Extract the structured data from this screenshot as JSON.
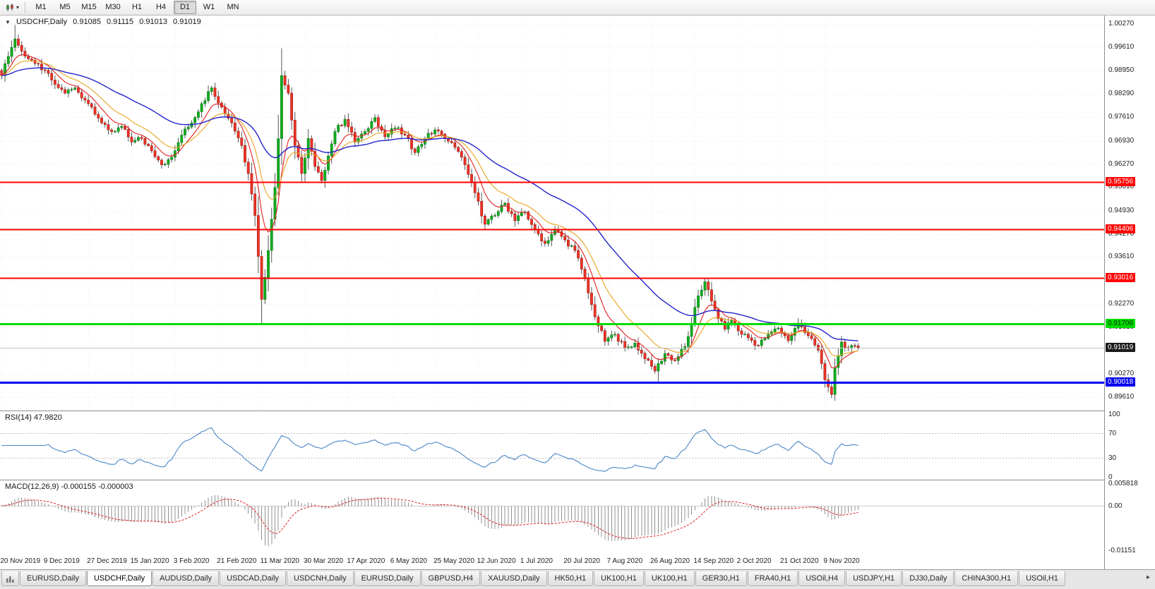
{
  "icons": {
    "collapse_triangle": "▼",
    "dropdown_caret": "▾",
    "scroll_right_arrow": "▸"
  },
  "toolbar": {
    "timeframes": [
      "M1",
      "M5",
      "M15",
      "M30",
      "H1",
      "H4",
      "D1",
      "W1",
      "MN"
    ],
    "active": "D1"
  },
  "panels": {
    "main_title_symbol": "USDCHF,Daily",
    "rsi_title": "RSI(14) 47.9820",
    "macd_title": "MACD(12,26,9) -0.000155 -0.000003"
  },
  "chart_data": {
    "type": "candlestick",
    "symbol": "USDCHF",
    "timeframe": "Daily",
    "quote": {
      "open": "0.91085",
      "high": "0.91115",
      "low": "0.91013",
      "close": "0.91019"
    },
    "x_axis": {
      "bars_total": 258,
      "bars_per_tick": 13,
      "tick_labels": [
        "20 Nov 2019",
        "9 Dec 2019",
        "27 Dec 2019",
        "15 Jan 2020",
        "3 Feb 2020",
        "21 Feb 2020",
        "11 Mar 2020",
        "30 Mar 2020",
        "17 Apr 2020",
        "6 May 2020",
        "25 May 2020",
        "12 Jun 2020",
        "1 Jul 2020",
        "20 Jul 2020",
        "7 Aug 2020",
        "26 Aug 2020",
        "14 Sep 2020",
        "2 Oct 2020",
        "21 Oct 2020",
        "9 Nov 2020"
      ]
    },
    "y_axis": {
      "top_price": 1.0052,
      "bottom_price": 0.8922,
      "tick_labels": [
        "1.00270",
        "0.99610",
        "0.98950",
        "0.98290",
        "0.97610",
        "0.96930",
        "0.96270",
        "0.95610",
        "0.94930",
        "0.94270",
        "0.93610",
        "0.92930",
        "0.92270",
        "0.91610",
        "0.90930",
        "0.90270",
        "0.89610"
      ]
    },
    "price_path_waypoints": [
      [
        0,
        0.988
      ],
      [
        2,
        0.9935
      ],
      [
        4,
        0.9985
      ],
      [
        6,
        0.995
      ],
      [
        10,
        0.9915
      ],
      [
        13,
        0.9895
      ],
      [
        16,
        0.9855
      ],
      [
        19,
        0.983
      ],
      [
        22,
        0.9845
      ],
      [
        25,
        0.981
      ],
      [
        27,
        0.979
      ],
      [
        30,
        0.9745
      ],
      [
        33,
        0.972
      ],
      [
        36,
        0.9735
      ],
      [
        39,
        0.969
      ],
      [
        42,
        0.97
      ],
      [
        45,
        0.9665
      ],
      [
        48,
        0.9625
      ],
      [
        50,
        0.964
      ],
      [
        52,
        0.9665
      ],
      [
        54,
        0.971
      ],
      [
        57,
        0.9745
      ],
      [
        60,
        0.98
      ],
      [
        63,
        0.9845
      ],
      [
        66,
        0.979
      ],
      [
        69,
        0.9745
      ],
      [
        72,
        0.968
      ],
      [
        74,
        0.96
      ],
      [
        76,
        0.948
      ],
      [
        78,
        0.924
      ],
      [
        80,
        0.938
      ],
      [
        82,
        0.956
      ],
      [
        83,
        0.97
      ],
      [
        84,
        0.988
      ],
      [
        86,
        0.983
      ],
      [
        88,
        0.968
      ],
      [
        90,
        0.96
      ],
      [
        92,
        0.97
      ],
      [
        94,
        0.962
      ],
      [
        96,
        0.958
      ],
      [
        98,
        0.965
      ],
      [
        100,
        0.972
      ],
      [
        103,
        0.9755
      ],
      [
        106,
        0.969
      ],
      [
        109,
        0.972
      ],
      [
        112,
        0.976
      ],
      [
        115,
        0.9705
      ],
      [
        118,
        0.973
      ],
      [
        121,
        0.971
      ],
      [
        124,
        0.966
      ],
      [
        127,
        0.97
      ],
      [
        130,
        0.9725
      ],
      [
        133,
        0.97
      ],
      [
        136,
        0.9675
      ],
      [
        139,
        0.9625
      ],
      [
        142,
        0.9545
      ],
      [
        145,
        0.9455
      ],
      [
        148,
        0.948
      ],
      [
        151,
        0.9515
      ],
      [
        154,
        0.9465
      ],
      [
        157,
        0.949
      ],
      [
        160,
        0.944
      ],
      [
        163,
        0.94
      ],
      [
        166,
        0.944
      ],
      [
        169,
        0.941
      ],
      [
        172,
        0.938
      ],
      [
        175,
        0.93
      ],
      [
        178,
        0.919
      ],
      [
        181,
        0.912
      ],
      [
        184,
        0.914
      ],
      [
        187,
        0.91
      ],
      [
        190,
        0.9115
      ],
      [
        193,
        0.907
      ],
      [
        196,
        0.9035
      ],
      [
        199,
        0.9085
      ],
      [
        202,
        0.9065
      ],
      [
        205,
        0.9105
      ],
      [
        207,
        0.917
      ],
      [
        209,
        0.925
      ],
      [
        211,
        0.929
      ],
      [
        213,
        0.9235
      ],
      [
        215,
        0.9185
      ],
      [
        217,
        0.9155
      ],
      [
        219,
        0.918
      ],
      [
        221,
        0.915
      ],
      [
        224,
        0.913
      ],
      [
        227,
        0.9108
      ],
      [
        230,
        0.914
      ],
      [
        233,
        0.9158
      ],
      [
        236,
        0.9122
      ],
      [
        239,
        0.9172
      ],
      [
        241,
        0.9145
      ],
      [
        243,
        0.9128
      ],
      [
        245,
        0.9095
      ],
      [
        247,
        0.901
      ],
      [
        249,
        0.8968
      ],
      [
        250,
        0.9045
      ],
      [
        252,
        0.9118
      ],
      [
        254,
        0.91
      ],
      [
        257,
        0.9102
      ]
    ],
    "extreme_spikes": [
      {
        "bar": 4,
        "high": 1.0025
      },
      {
        "bar": 62,
        "high": 0.9852
      },
      {
        "bar": 78,
        "low": 0.9172
      },
      {
        "bar": 84,
        "high": 0.9901
      },
      {
        "bar": 197,
        "low": 0.9003
      },
      {
        "bar": 211,
        "high": 0.9296
      },
      {
        "bar": 249,
        "low": 0.8961
      }
    ],
    "moving_averages": [
      {
        "name": "fast-ma-red",
        "color": "#e01f1f",
        "period": 8
      },
      {
        "name": "medium-ma-gold",
        "color": "#e8a51e",
        "period": 16
      },
      {
        "name": "slow-ma-blue",
        "color": "#2323cc",
        "period": 45
      }
    ],
    "horizontal_lines": [
      {
        "value": 0.95756,
        "label": "0.95756",
        "color": "#ff0000",
        "text_color": "#ffffff",
        "thickness": 2
      },
      {
        "value": 0.94406,
        "label": "0.94406",
        "color": "#ff0000",
        "text_color": "#ffffff",
        "thickness": 2
      },
      {
        "value": 0.93016,
        "label": "0.93016",
        "color": "#ff0000",
        "text_color": "#ffffff",
        "thickness": 2
      },
      {
        "value": 0.91706,
        "label": "0.91706",
        "color": "#00dd00",
        "text_color": "#002b00",
        "thickness": 3
      },
      {
        "value": 0.90018,
        "label": "0.90018",
        "color": "#0000ee",
        "text_color": "#ffffff",
        "thickness": 3
      }
    ],
    "current_price": {
      "value": 0.91019,
      "label": "0.91019",
      "line_color": "#c0c0c0",
      "badge_bg": "#1a1a1a",
      "badge_text": "#ffffff"
    },
    "candle_colors": {
      "up": "#0fae1e",
      "up_border": "#077a12",
      "down": "#ee3326",
      "down_border": "#a31b12",
      "wick": "#444444"
    },
    "indicators": {
      "rsi": {
        "period": 14,
        "levels": [
          70,
          30
        ],
        "range": [
          0,
          100
        ],
        "axis_labels": [
          "100",
          "70",
          "30",
          "0"
        ],
        "color": "#4a86c8",
        "current_value": "47.9820"
      },
      "macd": {
        "fast": 12,
        "slow": 26,
        "signal": 9,
        "range_min": -0.01151,
        "range_max": 0.005818,
        "axis_labels": [
          "0.005818",
          "0.00",
          "-0.01151"
        ],
        "histogram_color": "#909090",
        "signal_color": "#e01f1f",
        "macd_value": "-0.000155",
        "signal_value": "-0.000003"
      }
    }
  },
  "tabbar": {
    "items": [
      {
        "label": "EURUSD,Daily",
        "active": false
      },
      {
        "label": "USDCHF,Daily",
        "active": true
      },
      {
        "label": "AUDUSD,Daily",
        "active": false
      },
      {
        "label": "USDCAD,Daily",
        "active": false
      },
      {
        "label": "USDCNH,Daily",
        "active": false
      },
      {
        "label": "EURUSD,Daily",
        "active": false
      },
      {
        "label": "GBPUSD,H4",
        "active": false
      },
      {
        "label": "XAUUSD,Daily",
        "active": false
      },
      {
        "label": "HK50,H1",
        "active": false
      },
      {
        "label": "UK100,H1",
        "active": false
      },
      {
        "label": "UK100,H1",
        "active": false
      },
      {
        "label": "GER30,H1",
        "active": false
      },
      {
        "label": "FRA40,H1",
        "active": false
      },
      {
        "label": "USOil,H4",
        "active": false
      },
      {
        "label": "USDJPY,H1",
        "active": false
      },
      {
        "label": "DJ30,Daily",
        "active": false
      },
      {
        "label": "CHINA300,H1",
        "active": false
      },
      {
        "label": "USOil,H1",
        "active": false
      }
    ]
  }
}
